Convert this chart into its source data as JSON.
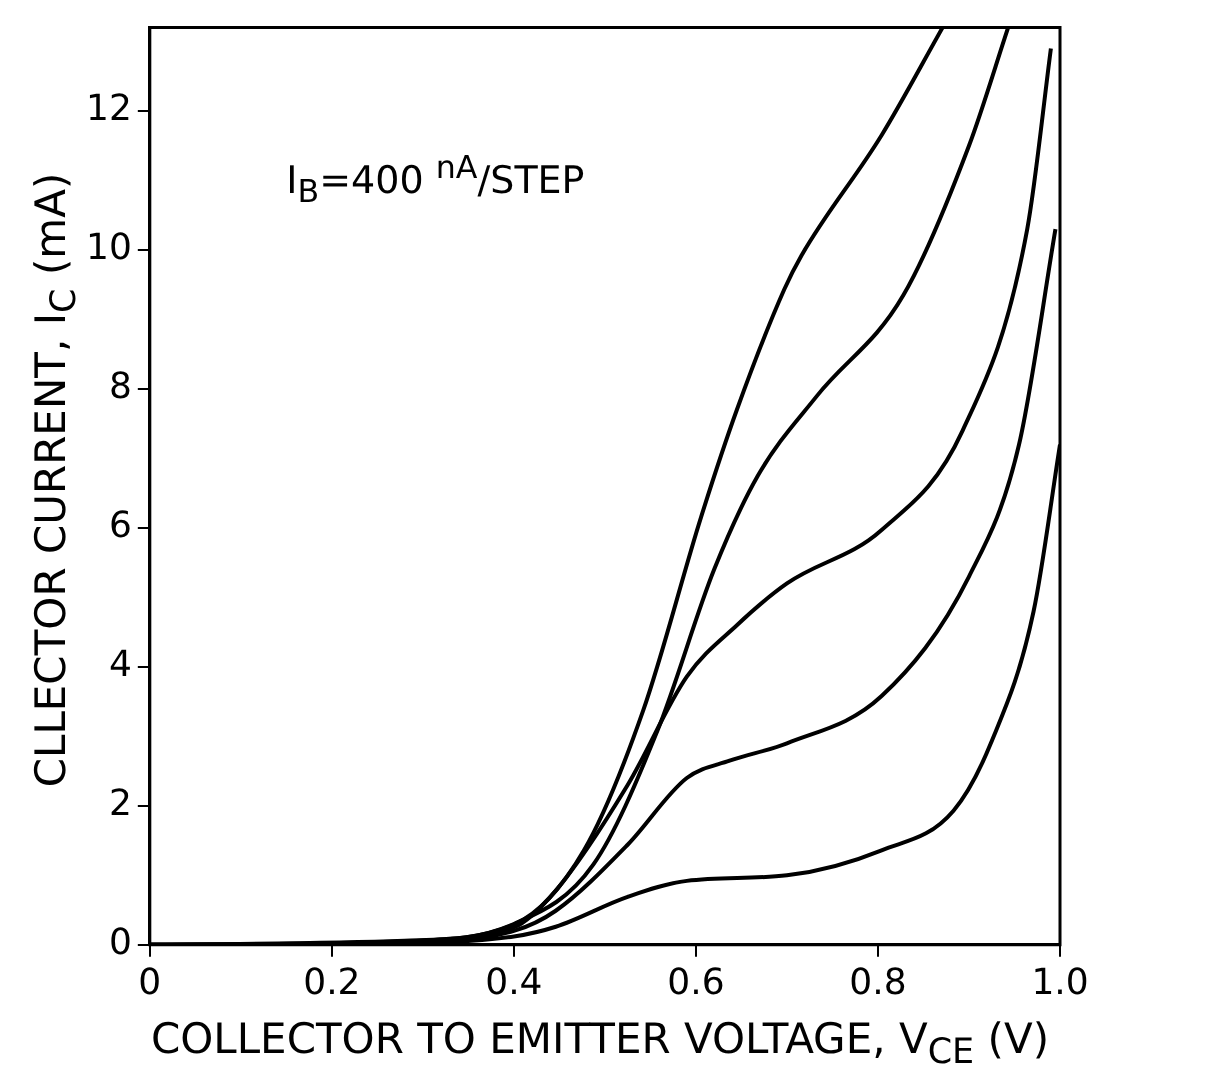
{
  "chart_data": {
    "type": "line",
    "xlabel": "COLLECTOR TO EMITTER VOLTAGE, V$_{CE}$ (V)",
    "ylabel": "CLLECTOR CURRENT, I$_{C}$ (mA)",
    "annotations": [
      "I$_{B}$=400 $^{nA}$/STEP"
    ],
    "xlim": [
      0,
      1
    ],
    "xticks": [
      0,
      0.2,
      0.4,
      0.6,
      0.8,
      {
        "value": 1,
        "label": "1.0"
      }
    ],
    "ylim": [
      0,
      13.2
    ],
    "yticks": [
      0,
      2,
      4,
      6,
      8,
      10,
      12
    ],
    "grid": false,
    "legend": false,
    "marker": "none",
    "line_style": "solid",
    "series": [
      {
        "color": "#000000",
        "x": [
          0,
          0.28,
          0.4,
          0.477,
          0.542,
          0.606,
          0.645,
          0.697,
          0.716,
          0.804,
          0.871
        ],
        "values": [
          0,
          0.06,
          0.29,
          1.36,
          3.37,
          6.17,
          7.7,
          9.43,
          9.92,
          11.65,
          13.2
        ]
      },
      {
        "color": "#000000",
        "x": [
          0,
          0.28,
          0.4,
          0.487,
          0.558,
          0.62,
          0.668,
          0.733,
          0.828,
          0.9,
          0.943
        ],
        "values": [
          0,
          0.05,
          0.3,
          1.15,
          3.09,
          5.4,
          6.75,
          7.9,
          9.35,
          11.5,
          13.2
        ]
      },
      {
        "color": "#000000",
        "x": [
          0,
          0.28,
          0.4,
          0.446,
          0.525,
          0.59,
          0.645,
          0.7,
          0.804,
          0.893,
          0.964,
          0.99
        ],
        "values": [
          0,
          0.04,
          0.25,
          0.78,
          2.3,
          3.86,
          4.6,
          5.2,
          5.97,
          7.4,
          10.3,
          12.9
        ]
      },
      {
        "color": "#000000",
        "x": [
          0,
          0.28,
          0.4,
          0.446,
          0.525,
          0.59,
          0.637,
          0.7,
          0.804,
          0.9,
          0.955,
          0.995
        ],
        "values": [
          0,
          0.03,
          0.2,
          0.49,
          1.44,
          2.4,
          2.65,
          2.9,
          3.58,
          5.3,
          7.2,
          10.3
        ]
      },
      {
        "color": "#000000",
        "x": [
          0,
          0.28,
          0.4,
          0.446,
          0.525,
          0.59,
          0.7,
          0.804,
          0.883,
          0.924,
          0.971,
          1
        ],
        "values": [
          0,
          0.02,
          0.12,
          0.26,
          0.69,
          0.92,
          1.0,
          1.36,
          1.93,
          2.9,
          4.8,
          7.2
        ]
      }
    ]
  }
}
